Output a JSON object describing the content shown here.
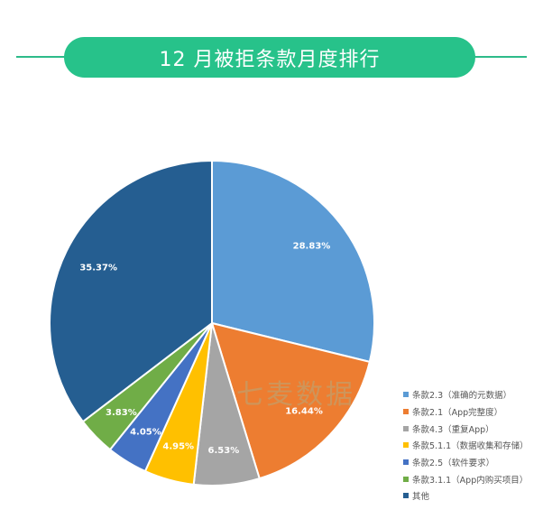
{
  "header": {
    "title": "12 月被拒条款月度排行"
  },
  "watermark": "七麦数据",
  "chart_data": {
    "type": "pie",
    "title": "12 月被拒条款月度排行",
    "legend_position": "bottom-right",
    "start_angle_deg": 0,
    "direction": "clockwise",
    "slices": [
      {
        "label": "条款2.3（准确的元数据）",
        "value": 28.83,
        "display": "28.83%",
        "color": "#5b9bd5"
      },
      {
        "label": "条款2.1（App完整度）",
        "value": 16.44,
        "display": "16.44%",
        "color": "#ed7d31"
      },
      {
        "label": "条款4.3（重复App）",
        "value": 6.53,
        "display": "6.53%",
        "color": "#a5a5a5"
      },
      {
        "label": "条款5.1.1（数据收集和存储）",
        "value": 4.95,
        "display": "4.95%",
        "color": "#ffc000"
      },
      {
        "label": "条款2.5（软件要求）",
        "value": 4.05,
        "display": "4.05%",
        "color": "#4472c4"
      },
      {
        "label": "条款3.1.1（App内购买项目）",
        "value": 3.83,
        "display": "3.83%",
        "color": "#70ad47"
      },
      {
        "label": "其他",
        "value": 35.37,
        "display": "35.37%",
        "color": "#255e91"
      }
    ]
  }
}
